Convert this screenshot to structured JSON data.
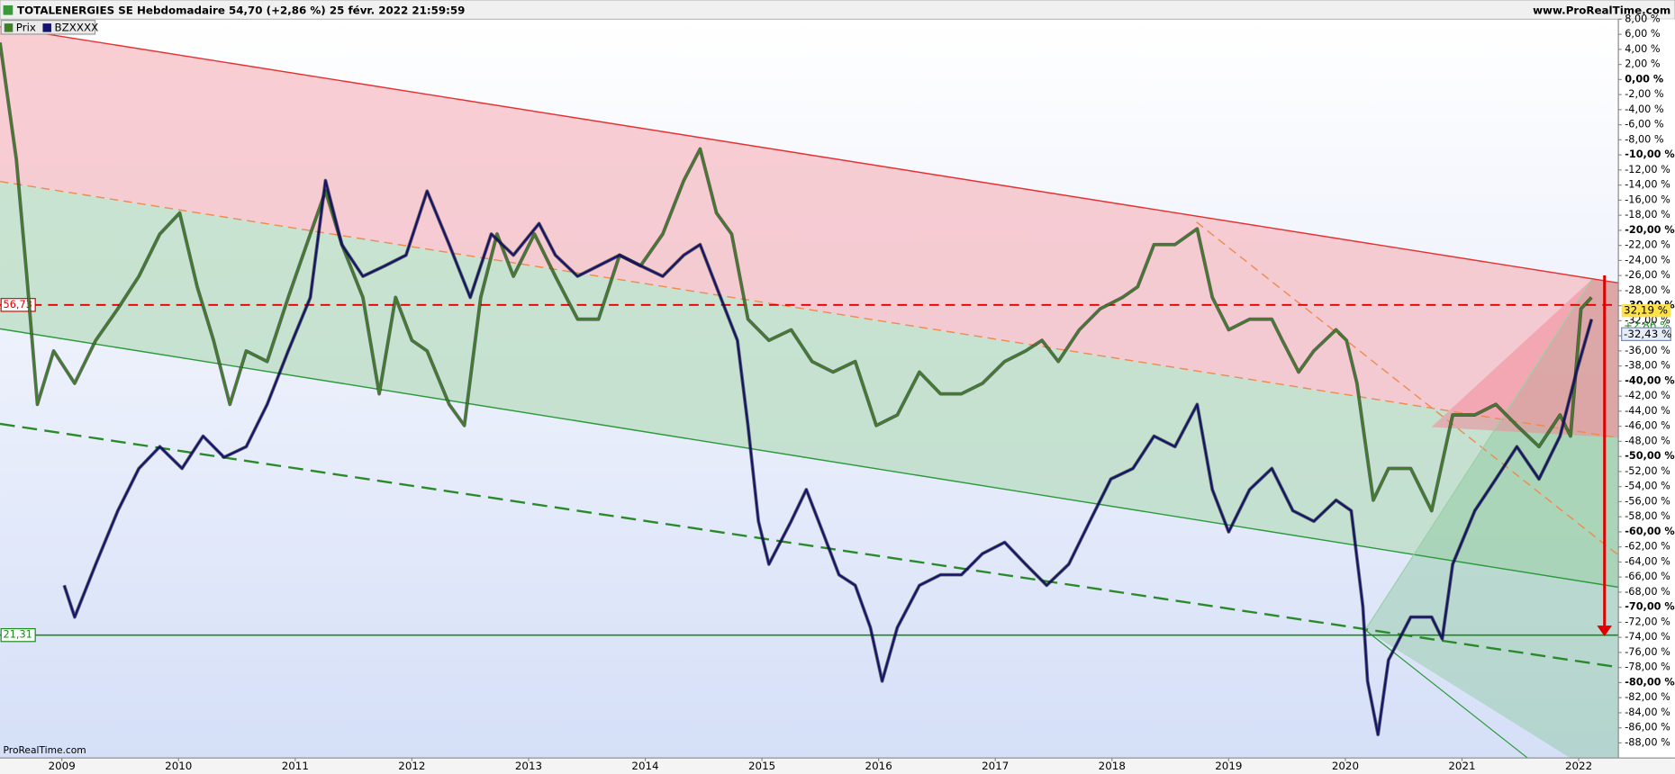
{
  "chart_data": {
    "type": "line",
    "title": "TOTALENERGIES SE Hebdomadaire 54,70 (+2,86 %) 25 févr. 2022 21:59:59",
    "source": "www.ProRealTime.com",
    "footer": "ProRealTime.com",
    "xlim": [
      2008.47,
      2022.34
    ],
    "xticks": [
      2009,
      2010,
      2011,
      2012,
      2013,
      2014,
      2015,
      2016,
      2017,
      2018,
      2019,
      2020,
      2021,
      2022
    ],
    "ylim": [
      -90,
      8
    ],
    "yticks": [
      {
        "value": 8,
        "label": "8,00 %"
      },
      {
        "value": 6,
        "label": "6,00 %"
      },
      {
        "value": 4,
        "label": "4,00 %"
      },
      {
        "value": 2,
        "label": "2,00 %"
      },
      {
        "value": 0,
        "label": "0,00 %"
      },
      {
        "value": -2,
        "label": "-2,00 %"
      },
      {
        "value": -4,
        "label": "-4,00 %"
      },
      {
        "value": -6,
        "label": "-6,00 %"
      },
      {
        "value": -8,
        "label": "-8,00 %"
      },
      {
        "value": -10,
        "label": "-10,00 %"
      },
      {
        "value": -12,
        "label": "-12,00 %"
      },
      {
        "value": -14,
        "label": "-14,00 %"
      },
      {
        "value": -16,
        "label": "-16,00 %"
      },
      {
        "value": -18,
        "label": "-18,00 %"
      },
      {
        "value": -20,
        "label": "-20,00 %"
      },
      {
        "value": -22,
        "label": "-22,00 %"
      },
      {
        "value": -24,
        "label": "-24,00 %"
      },
      {
        "value": -26,
        "label": "-26,00 %"
      },
      {
        "value": -28,
        "label": "-28,00 %"
      },
      {
        "value": -30,
        "label": "-30,00 %"
      },
      {
        "value": -32,
        "label": "-32,00 %"
      },
      {
        "value": -34,
        "label": "-34,00 %"
      },
      {
        "value": -36,
        "label": "-36,00 %"
      },
      {
        "value": -38,
        "label": "-38,00 %"
      },
      {
        "value": -40,
        "label": "-40,00 %"
      },
      {
        "value": -42,
        "label": "-42,00 %"
      },
      {
        "value": -44,
        "label": "-44,00 %"
      },
      {
        "value": -46,
        "label": "-46,00 %"
      },
      {
        "value": -48,
        "label": "-48,00 %"
      },
      {
        "value": -50,
        "label": "-50,00 %"
      },
      {
        "value": -52,
        "label": "-52,00 %"
      },
      {
        "value": -54,
        "label": "-54,00 %"
      },
      {
        "value": -56,
        "label": "-56,00 %"
      },
      {
        "value": -58,
        "label": "-58,00 %"
      },
      {
        "value": -60,
        "label": "-60,00 %"
      },
      {
        "value": -62,
        "label": "-62,00 %"
      },
      {
        "value": -64,
        "label": "-64,00 %"
      },
      {
        "value": -66,
        "label": "-66,00 %"
      },
      {
        "value": -68,
        "label": "-68,00 %"
      },
      {
        "value": -70,
        "label": "-70,00 %"
      },
      {
        "value": -72,
        "label": "-72,00 %"
      },
      {
        "value": -74,
        "label": "-74,00 %"
      },
      {
        "value": -76,
        "label": "-76,00 %"
      },
      {
        "value": -78,
        "label": "-78,00 %"
      },
      {
        "value": -80,
        "label": "-80,00 %"
      },
      {
        "value": -82,
        "label": "-82,00 %"
      },
      {
        "value": -84,
        "label": "-84,00 %"
      },
      {
        "value": -86,
        "label": "-86,00 %"
      },
      {
        "value": -88,
        "label": "-88,00 %"
      }
    ],
    "levels": [
      {
        "label": "56,73",
        "value": -29.9,
        "color": "#e00000"
      },
      {
        "label": "21,31",
        "value": -73.7,
        "color": "#1a8a1a"
      }
    ],
    "price_labels": [
      "32,19 %",
      "+2,86 %",
      "-32,43 %"
    ],
    "series": [
      {
        "name": "Prix",
        "color": "#3f7f2a",
        "x": [
          2008.47,
          2008.61,
          2008.7,
          2008.79,
          2008.93,
          2009.11,
          2009.29,
          2009.48,
          2009.66,
          2009.84,
          2010.01,
          2010.16,
          2010.3,
          2010.44,
          2010.58,
          2010.76,
          2010.94,
          2011.13,
          2011.26,
          2011.4,
          2011.58,
          2011.72,
          2011.86,
          2012.0,
          2012.13,
          2012.32,
          2012.45,
          2012.59,
          2012.73,
          2012.87,
          2013.05,
          2013.23,
          2013.42,
          2013.6,
          2013.78,
          2013.96,
          2014.15,
          2014.33,
          2014.47,
          2014.61,
          2014.74,
          2014.88,
          2015.06,
          2015.25,
          2015.43,
          2015.61,
          2015.8,
          2015.98,
          2016.16,
          2016.35,
          2016.53,
          2016.71,
          2016.89,
          2017.08,
          2017.26,
          2017.4,
          2017.54,
          2017.72,
          2017.9,
          2018.09,
          2018.22,
          2018.36,
          2018.54,
          2018.73,
          2018.86,
          2019.0,
          2019.18,
          2019.37,
          2019.46,
          2019.6,
          2019.73,
          2019.92,
          2020.01,
          2020.1,
          2020.15,
          2020.24,
          2020.37,
          2020.56,
          2020.74,
          2020.92,
          2021.11,
          2021.29,
          2021.47,
          2021.66,
          2021.84,
          2021.93,
          2022.02,
          2022.11
        ],
        "values": [
          4.9,
          -10.6,
          -26.1,
          -43.1,
          -36.0,
          -40.3,
          -34.6,
          -30.4,
          -26.1,
          -20.5,
          -17.7,
          -27.5,
          -34.6,
          -43.1,
          -36.0,
          -37.4,
          -28.9,
          -20.5,
          -14.8,
          -21.9,
          -28.9,
          -41.7,
          -28.9,
          -34.6,
          -36.0,
          -43.1,
          -45.9,
          -28.9,
          -20.5,
          -26.1,
          -20.5,
          -26.1,
          -31.8,
          -31.8,
          -23.3,
          -24.7,
          -20.5,
          -13.4,
          -9.2,
          -17.7,
          -20.5,
          -31.8,
          -34.6,
          -33.2,
          -37.4,
          -38.8,
          -37.4,
          -45.9,
          -44.5,
          -38.8,
          -41.7,
          -41.7,
          -40.3,
          -37.4,
          -36.0,
          -34.6,
          -37.4,
          -33.2,
          -30.4,
          -28.9,
          -27.5,
          -21.9,
          -21.9,
          -19.8,
          -28.9,
          -33.2,
          -31.8,
          -31.8,
          -34.6,
          -38.8,
          -36.0,
          -33.2,
          -34.6,
          -40.3,
          -45.9,
          -55.8,
          -51.6,
          -51.6,
          -57.2,
          -44.5,
          -44.5,
          -43.1,
          -45.9,
          -48.7,
          -44.5,
          -47.3,
          -30.4,
          -28.9
        ]
      },
      {
        "name": "BZXXXX",
        "color": "#14146e",
        "x": [
          2009.02,
          2009.11,
          2009.29,
          2009.48,
          2009.66,
          2009.84,
          2010.03,
          2010.21,
          2010.39,
          2010.58,
          2010.76,
          2010.94,
          2011.13,
          2011.26,
          2011.4,
          2011.58,
          2011.77,
          2011.95,
          2012.13,
          2012.32,
          2012.5,
          2012.68,
          2012.87,
          2013.09,
          2013.23,
          2013.42,
          2013.6,
          2013.78,
          2013.96,
          2014.15,
          2014.33,
          2014.47,
          2014.61,
          2014.79,
          2014.88,
          2014.97,
          2015.06,
          2015.25,
          2015.38,
          2015.52,
          2015.66,
          2015.8,
          2015.93,
          2016.03,
          2016.16,
          2016.35,
          2016.53,
          2016.71,
          2016.89,
          2017.08,
          2017.26,
          2017.44,
          2017.63,
          2017.81,
          2017.99,
          2018.18,
          2018.36,
          2018.54,
          2018.73,
          2018.86,
          2019.0,
          2019.18,
          2019.37,
          2019.55,
          2019.73,
          2019.92,
          2020.05,
          2020.15,
          2020.19,
          2020.28,
          2020.37,
          2020.56,
          2020.74,
          2020.83,
          2020.92,
          2021.11,
          2021.29,
          2021.47,
          2021.66,
          2021.84,
          2021.98,
          2022.11
        ],
        "values": [
          -67.1,
          -71.3,
          -64.3,
          -57.2,
          -51.6,
          -48.7,
          -51.6,
          -47.3,
          -50.1,
          -48.7,
          -43.1,
          -36.0,
          -28.9,
          -13.4,
          -21.9,
          -26.1,
          -24.7,
          -23.3,
          -14.8,
          -21.9,
          -28.9,
          -20.5,
          -23.3,
          -19.1,
          -23.3,
          -26.1,
          -24.7,
          -23.3,
          -24.7,
          -26.1,
          -23.3,
          -21.9,
          -27.5,
          -34.6,
          -45.9,
          -58.6,
          -64.3,
          -58.6,
          -54.4,
          -60.0,
          -65.7,
          -67.1,
          -72.7,
          -79.8,
          -72.7,
          -67.1,
          -65.7,
          -65.7,
          -62.9,
          -61.4,
          -64.3,
          -67.1,
          -64.3,
          -58.6,
          -53.0,
          -51.6,
          -47.3,
          -48.7,
          -43.1,
          -54.4,
          -60.0,
          -54.4,
          -51.6,
          -57.2,
          -58.6,
          -55.8,
          -57.2,
          -69.9,
          -79.8,
          -86.9,
          -77.0,
          -71.3,
          -71.3,
          -74.2,
          -64.3,
          -57.2,
          -53.0,
          -48.7,
          -53.0,
          -47.3,
          -38.8,
          -31.8
        ]
      }
    ]
  }
}
